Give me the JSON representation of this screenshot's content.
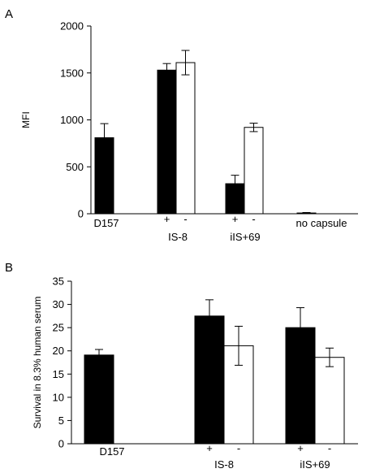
{
  "chart_data": [
    {
      "type": "bar",
      "panel_label": "A",
      "ylabel": "MFI",
      "ylim": [
        0,
        2000
      ],
      "yticks": [
        0,
        500,
        1000,
        1500,
        2000
      ],
      "groups": [
        {
          "label": "D157",
          "sign_labels": [],
          "bars": [
            {
              "fill": "filled",
              "value": 810,
              "error": 150
            }
          ]
        },
        {
          "label": "IS-8",
          "sign_labels": [
            "+",
            "-"
          ],
          "bars": [
            {
              "fill": "filled",
              "value": 1530,
              "error": 70
            },
            {
              "fill": "open",
              "value": 1610,
              "error": 130
            }
          ]
        },
        {
          "label": "iIS+69",
          "sign_labels": [
            "+",
            "-"
          ],
          "bars": [
            {
              "fill": "filled",
              "value": 320,
              "error": 90
            },
            {
              "fill": "open",
              "value": 920,
              "error": 45
            }
          ]
        },
        {
          "label": "no capsule",
          "sign_labels": [],
          "bars": [
            {
              "fill": "filled",
              "value": 8,
              "error": 5
            }
          ]
        }
      ],
      "colors": {
        "filled": "#000000",
        "open": "#ffffff",
        "axis": "#000000"
      }
    },
    {
      "type": "bar",
      "panel_label": "B",
      "ylabel": "Survival in 8.3% human serum",
      "ylim": [
        0,
        35
      ],
      "yticks": [
        0,
        5,
        10,
        15,
        20,
        25,
        30,
        35
      ],
      "groups": [
        {
          "label": "D157",
          "sign_labels": [],
          "bars": [
            {
              "fill": "filled",
              "value": 19.1,
              "error": 1.2
            }
          ]
        },
        {
          "label": "IS-8",
          "sign_labels": [
            "+",
            "-"
          ],
          "bars": [
            {
              "fill": "filled",
              "value": 27.5,
              "error": 3.5
            },
            {
              "fill": "open",
              "value": 21.1,
              "error": 4.2
            }
          ]
        },
        {
          "label": "iIS+69",
          "sign_labels": [
            "+",
            "-"
          ],
          "bars": [
            {
              "fill": "filled",
              "value": 25.0,
              "error": 4.3
            },
            {
              "fill": "open",
              "value": 18.6,
              "error": 2.0
            }
          ]
        }
      ],
      "colors": {
        "filled": "#000000",
        "open": "#ffffff",
        "axis": "#000000"
      }
    }
  ]
}
